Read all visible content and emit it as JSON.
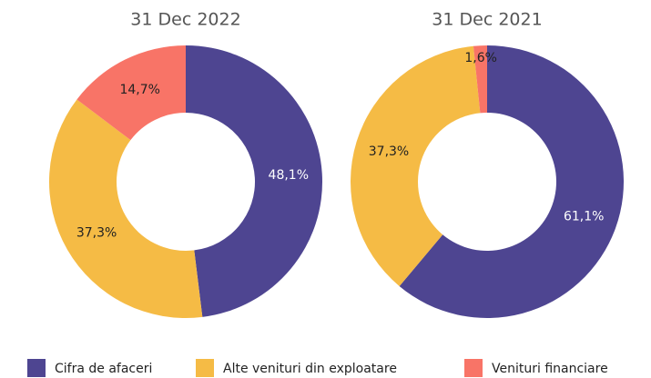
{
  "chart_data": [
    {
      "type": "pie",
      "title": "31 Dec 2022",
      "values": [
        48.1,
        37.3,
        14.7
      ],
      "value_labels": [
        "48,1%",
        "37,3%",
        "14,7%"
      ]
    },
    {
      "type": "pie",
      "title": "31 Dec 2021",
      "values": [
        61.1,
        37.3,
        1.6
      ],
      "value_labels": [
        "61,1%",
        "37,3%",
        "1,6%"
      ]
    }
  ],
  "legend": {
    "names": [
      "Cifra de afaceri",
      "Alte venituri din exploatare",
      "Venituri financiare"
    ],
    "colors": [
      "#4e4591",
      "#f5bb45",
      "#f87467"
    ],
    "text_colors": [
      "#ffffff",
      "#222222",
      "#222222"
    ]
  }
}
